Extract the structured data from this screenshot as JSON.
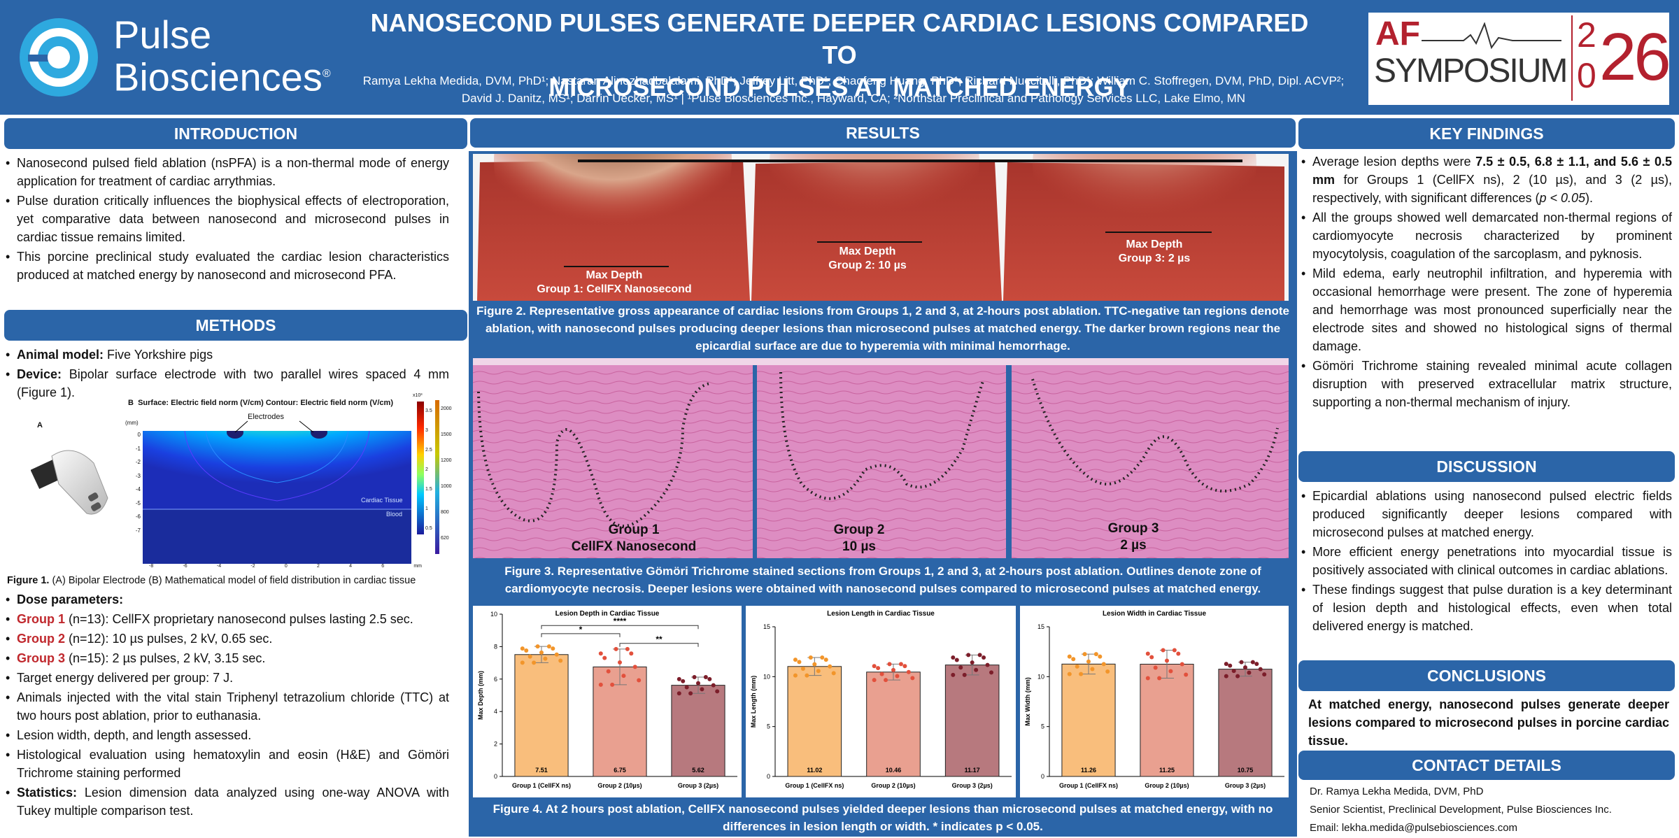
{
  "header": {
    "logo_line1": "Pulse",
    "logo_line2": "Biosciences",
    "logo_reg": "®",
    "title_line1": "NANOSECOND PULSES GENERATE DEEPER CARDIAC LESIONS COMPARED TO",
    "title_line2": "MICROSECOND PULSES AT MATCHED ENERGY",
    "authors_line1": "Ramya Lekha Medida, DVM, PhD¹; Nastaran Alinezhadbalalami, PhD¹; Jeffrey Litt, PhD¹; Chaofeng Huang, PhD¹; Richard Nuccitelli, PhD¹; William C. Stoffregen, DVM, PhD, Dipl. ACVP²;",
    "authors_line2": "David J. Danitz, MS¹; Darrin Uecker, MS¹ | ¹Pulse Biosciences Inc., Hayward, CA; ²Northstar Preclinical and Pathology Services LLC, Lake Elmo, MN",
    "af_a": "AF",
    "af_symposium": "SYMPOSIUM",
    "af_2": "2",
    "af_0": "0",
    "af_26": "26"
  },
  "intro": {
    "title": "INTRODUCTION",
    "items": [
      "Nanosecond pulsed field ablation (nsPFA) is a non-thermal mode of energy application for treatment of cardiac arrythmias.",
      "Pulse duration critically influences the biophysical effects of electroporation, yet comparative data between nanosecond and microsecond pulses in cardiac tissue remains limited.",
      "This porcine preclinical study evaluated the cardiac lesion characteristics produced at matched energy by nanosecond and microsecond PFA."
    ]
  },
  "methods": {
    "title": "METHODS",
    "animal_b": "Animal model:",
    "animal": " Five Yorkshire pigs",
    "device_b": "Device:",
    "device": " Bipolar surface electrode with two parallel wires spaced 4 mm (Figure 1).",
    "fig_a": "A",
    "fig_b": "B",
    "fig_b_title": "Surface: Electric field norm (V/cm) Contour: Electric field norm (V/cm)",
    "electrodes": "Electrodes",
    "cardiac_tissue": "Cardiac Tissue",
    "blood": "Blood",
    "mm": "(mm)",
    "x10": "x10³",
    "cb1": [
      "3.5",
      "3",
      "2.5",
      "2",
      "1.5",
      "1",
      "0.5"
    ],
    "cb2": [
      "2000",
      "1500",
      "1200",
      "1000",
      "800",
      "620"
    ],
    "yticks": [
      "0",
      "-1",
      "-2",
      "-3",
      "-4",
      "-5",
      "-6",
      "-7"
    ],
    "xticks": [
      "-8",
      "-6",
      "-4",
      "-2",
      "0",
      "2",
      "4",
      "6",
      "mm"
    ],
    "fig1_b": "Figure 1.",
    "fig1": " (A) Bipolar Electrode (B) Mathematical model of field distribution in cardiac tissue",
    "dose_b": "Dose parameters:",
    "g1_b": "Group 1",
    "g1": " (n=13): CellFX proprietary nanosecond pulses lasting 2.5 sec.",
    "g2_b": "Group 2",
    "g2": " (n=12): 10 µs pulses, 2 kV, 0.65 sec.",
    "g3_b": "Group 3",
    "g3": " (n=15): 2 µs pulses, 2 kV, 3.15 sec.",
    "target": "Target energy delivered per group: 7 J.",
    "ttc": "Animals injected with the vital stain Triphenyl tetrazolium chloride (TTC) at two hours post ablation, prior to euthanasia.",
    "assess": "Lesion width, depth, and length assessed.",
    "histo": "Histological evaluation using hematoxylin and eosin (H&E) and Gömöri Trichrome staining performed",
    "stats_b": "Statistics:",
    "stats": " Lesion dimension data analyzed using one-way ANOVA with Tukey multiple comparison test."
  },
  "results": {
    "title": "RESULTS",
    "photo1": "Max Depth\nGroup 1: CellFX Nanosecond",
    "photo1a": "Max Depth",
    "photo1b": "Group 1: CellFX Nanosecond",
    "photo2a": "Max Depth",
    "photo2b": "Group 2: 10 µs",
    "photo3a": "Max Depth",
    "photo3b": "Group 3: 2 µs",
    "fig2": "Figure 2. Representative gross appearance of cardiac lesions from Groups 1, 2 and 3, at 2-hours post ablation. TTC-negative tan regions denote ablation, with nanosecond pulses producing deeper lesions than microsecond pulses at matched energy. The darker brown regions near the epicardial surface are due to hyperemia with minimal hemorrhage.",
    "hist1a": "Group 1",
    "hist1b": "CellFX Nanosecond",
    "hist2a": "Group 2",
    "hist2b": "10 µs",
    "hist3a": "Group 3",
    "hist3b": "2 µs",
    "fig3": "Figure 3. Representative Gömöri Trichrome stained sections from Groups 1, 2 and 3, at 2-hours post ablation. Outlines denote zone of cardiomyocyte necrosis. Deeper lesions were obtained with nanosecond pulses compared to microsecond pulses at matched energy.",
    "fig4": "Figure 4. At 2 hours post ablation, CellFX nanosecond pulses yielded deeper lesions than microsecond pulses at matched energy, with no differences in lesion length or width. * indicates p < 0.05."
  },
  "colors": {
    "g1": "#f9be7c",
    "g2": "#e9a090",
    "g3": "#b7797e",
    "g1pt": "#f2952a",
    "g2pt": "#e2503c",
    "g3pt": "#7c1e2a"
  },
  "chart_data": [
    {
      "type": "bar",
      "title": "Lesion Depth in Cardiac Tissue",
      "ylabel": "Max Depth (mm)",
      "categories": [
        "Group 1 (CellFX ns)",
        "Group 2 (10µs)",
        "Group 3 (2µs)"
      ],
      "values": [
        7.51,
        6.75,
        5.62
      ],
      "labels": [
        "7.51",
        "6.75",
        "5.62"
      ],
      "errors": [
        0.5,
        1.1,
        0.5
      ],
      "ylim": [
        0,
        10
      ],
      "yticks": [
        "0",
        "2",
        "4",
        "6",
        "8",
        "10"
      ],
      "sig": [
        "*",
        "****",
        "**"
      ]
    },
    {
      "type": "bar",
      "title": "Lesion Length in Cardiac Tissue",
      "ylabel": "Max Length (mm)",
      "categories": [
        "Group 1 (CellFX ns)",
        "Group 2 (10µs)",
        "Group 3 (2µs)"
      ],
      "values": [
        11.02,
        10.46,
        11.17
      ],
      "labels": [
        "11.02",
        "10.46",
        "11.17"
      ],
      "errors": [
        0.9,
        0.8,
        1.0
      ],
      "ylim": [
        0,
        15
      ],
      "yticks": [
        "0",
        "5",
        "10",
        "15"
      ]
    },
    {
      "type": "bar",
      "title": "Lesion Width in Cardiac Tissue",
      "ylabel": "Max Width (mm)",
      "categories": [
        "Group 1 (CellFX ns)",
        "Group 2 (10µs)",
        "Group 3 (2µs)"
      ],
      "values": [
        11.26,
        11.25,
        10.75
      ],
      "labels": [
        "11.26",
        "11.25",
        "10.75"
      ],
      "errors": [
        1.0,
        1.4,
        0.7
      ],
      "ylim": [
        0,
        15
      ],
      "yticks": [
        "0",
        "5",
        "10",
        "15"
      ]
    }
  ],
  "key": {
    "title": "KEY FINDINGS",
    "k1a": "Average lesion depths were ",
    "k1b": "7.5 ± 0.5, 6.8 ± 1.1, and 5.6 ± 0.5 mm",
    "k1c": " for Groups 1 (CellFX ns), 2 (10 µs), and 3 (2 µs), respectively, with significant differences (",
    "k1d": "p < 0.05",
    "k1e": ").",
    "k2": "All the groups showed well demarcated non-thermal regions of cardiomyocyte necrosis characterized by prominent myocytolysis, coagulation of the sarcoplasm, and pyknosis.",
    "k3": "Mild edema, early neutrophil infiltration, and hyperemia with occasional hemorrhage were present. The zone of hyperemia and hemorrhage was most pronounced superficially near the electrode sites and showed no histological signs of thermal damage.",
    "k4": "Gömöri Trichrome staining revealed minimal acute collagen disruption with preserved extracellular matrix structure, supporting a non-thermal mechanism of injury."
  },
  "discussion": {
    "title": "DISCUSSION",
    "items": [
      "Epicardial ablations using nanosecond pulsed electric fields produced significantly deeper lesions compared with microsecond pulses at matched energy.",
      "More efficient energy penetrations into myocardial tissue is positively associated with clinical outcomes in cardiac ablations.",
      "These findings suggest that pulse duration is a key determinant of lesion depth and histological effects, even when total delivered energy is matched."
    ]
  },
  "conclusions": {
    "title": "CONCLUSIONS",
    "text": "At matched energy, nanosecond pulses generate deeper lesions compared to microsecond pulses in porcine cardiac tissue."
  },
  "contact": {
    "title": "CONTACT DETAILS",
    "name": "Dr. Ramya Lekha Medida, DVM, PhD",
    "role": "Senior Scientist, Preclinical Development, Pulse Biosciences Inc.",
    "email": "Email: lekha.medida@pulsebiosciences.com"
  }
}
